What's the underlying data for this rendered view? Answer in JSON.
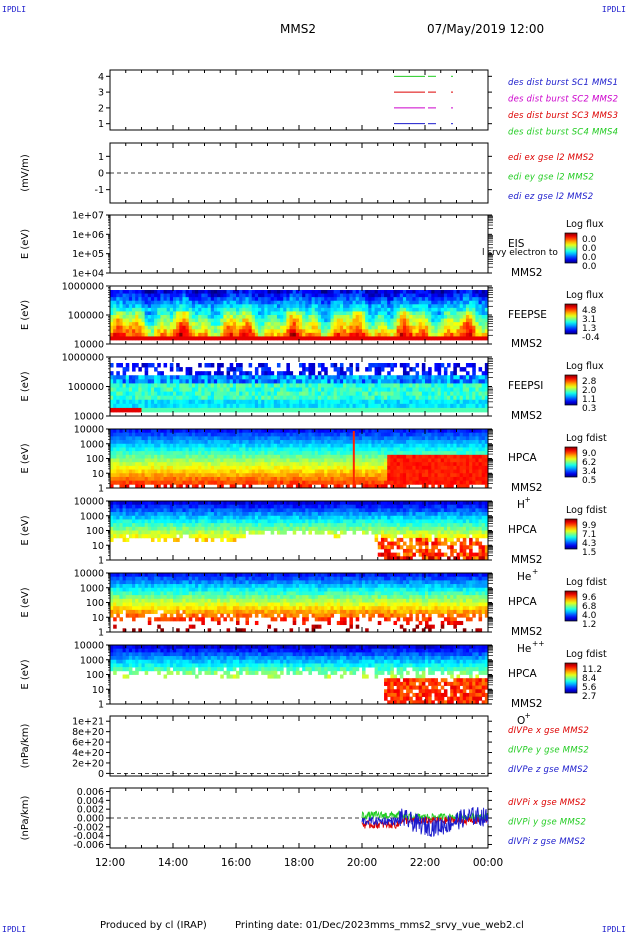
{
  "header": {
    "corner_tl": "IPDLI",
    "corner_tr": "IPDLI",
    "corner_bl": "IPDLI",
    "corner_br": "IPDLI",
    "spacecraft": "MMS2",
    "datetime": "07/May/2019 12:00"
  },
  "footer": {
    "produced": "Produced by cl (IRAP)",
    "printing": "Printing date: 01/Dec/2023",
    "script": "mms_mms2_srvy_vue_web2.cl"
  },
  "colors": {
    "blue": "#1a1acc",
    "magenta": "#cc00cc",
    "red": "#dd0000",
    "green": "#22cc22"
  },
  "chart_data": [
    {
      "type": "line",
      "panel": "burst",
      "yticks": [
        "1",
        "2",
        "3",
        "4"
      ],
      "ylim": [
        0.6,
        4.4
      ],
      "series": [
        {
          "name": "des dist burst SC1 MMS1",
          "color": "#1a1acc",
          "level": 1
        },
        {
          "name": "des dist burst SC2 MMS2",
          "color": "#cc00cc",
          "level": 2
        },
        {
          "name": "des dist burst SC3 MMS3",
          "color": "#dd0000",
          "level": 3
        },
        {
          "name": "des dist burst SC4 MMS4",
          "color": "#22cc22",
          "level": 4
        }
      ]
    },
    {
      "type": "line",
      "panel": "edi",
      "ylabel": "(mV/m)",
      "yticks": [
        "-1",
        "0",
        "1"
      ],
      "ylim": [
        -1.8,
        1.8
      ],
      "series": [
        {
          "name": "edi ex gse l2 MMS2",
          "color": "#dd0000"
        },
        {
          "name": "edi ey gse l2 MMS2",
          "color": "#22cc22"
        },
        {
          "name": "edi ez gse l2 MMS2",
          "color": "#1a1acc"
        }
      ]
    },
    {
      "type": "heatmap",
      "panel": "eis",
      "ylabel": "E (eV)",
      "yticks": [
        "1e+04",
        "1e+05",
        "1e+06",
        "1e+07"
      ],
      "instrument": "EIS",
      "overlay": "l srvy electron to",
      "sc": "MMS2",
      "cbar_title": "Log flux",
      "cbar_values": [
        "0.0",
        "0.0",
        "0.0",
        "0.0"
      ]
    },
    {
      "type": "heatmap",
      "panel": "feepse",
      "ylabel": "E (eV)",
      "yticks": [
        "10000",
        "100000",
        "1000000"
      ],
      "instrument": "FEEPSE",
      "sc": "MMS2",
      "cbar_title": "Log flux",
      "cbar_values": [
        "4.8",
        "3.1",
        "1.3",
        "-0.4"
      ]
    },
    {
      "type": "heatmap",
      "panel": "feepsi",
      "ylabel": "E (eV)",
      "yticks": [
        "10000",
        "100000",
        "1000000"
      ],
      "instrument": "FEEPSI",
      "sc": "MMS2",
      "cbar_title": "Log flux",
      "cbar_values": [
        "2.8",
        "2.0",
        "1.1",
        "0.3"
      ]
    },
    {
      "type": "heatmap",
      "panel": "hpca_h",
      "ylabel": "E (eV)",
      "yticks": [
        "1",
        "10",
        "100",
        "1000",
        "10000"
      ],
      "instrument": "HPCA",
      "sc": "MMS2",
      "species": "H",
      "species_sup": "+",
      "cbar_title": "Log fdist",
      "cbar_values": [
        "9.0",
        "6.2",
        "3.4",
        "0.5"
      ]
    },
    {
      "type": "heatmap",
      "panel": "hpca_he",
      "ylabel": "E (eV)",
      "yticks": [
        "1",
        "10",
        "100",
        "1000",
        "10000"
      ],
      "instrument": "HPCA",
      "sc": "MMS2",
      "species": "He",
      "species_sup": "+",
      "cbar_title": "Log fdist",
      "cbar_values": [
        "9.9",
        "7.1",
        "4.3",
        "1.5"
      ]
    },
    {
      "type": "heatmap",
      "panel": "hpca_hepp",
      "ylabel": "E (eV)",
      "yticks": [
        "1",
        "10",
        "100",
        "1000",
        "10000"
      ],
      "instrument": "HPCA",
      "sc": "MMS2",
      "species": "He",
      "species_sup": "++",
      "cbar_title": "Log fdist",
      "cbar_values": [
        "9.6",
        "6.8",
        "4.0",
        "1.2"
      ]
    },
    {
      "type": "heatmap",
      "panel": "hpca_o",
      "ylabel": "E (eV)",
      "yticks": [
        "1",
        "10",
        "100",
        "1000",
        "10000"
      ],
      "instrument": "HPCA",
      "sc": "MMS2",
      "species": "O",
      "species_sup": "+",
      "cbar_title": "Log fdist",
      "cbar_values": [
        "11.2",
        "8.4",
        "5.6",
        "2.7"
      ]
    },
    {
      "type": "line",
      "panel": "divpe",
      "ylabel": "(nPa/km)",
      "yticks": [
        "0",
        "2e+20",
        "4e+20",
        "6e+20",
        "8e+20",
        "1e+21"
      ],
      "ylim": [
        -5e+19,
        1.1e+21
      ],
      "series": [
        {
          "name": "dIVPe x gse MMS2",
          "color": "#dd0000"
        },
        {
          "name": "dIVPe y gse MMS2",
          "color": "#22cc22"
        },
        {
          "name": "dIVPe z gse MMS2",
          "color": "#1a1acc"
        }
      ]
    },
    {
      "type": "line",
      "panel": "divpi",
      "ylabel": "(nPa/km)",
      "yticks": [
        "-0.006",
        "-0.004",
        "-0.002",
        "0.000",
        "0.002",
        "0.004",
        "0.006"
      ],
      "ylim": [
        -0.0068,
        0.0068
      ],
      "series": [
        {
          "name": "dIVPi x gse MMS2",
          "color": "#dd0000"
        },
        {
          "name": "dIVPi y gse MMS2",
          "color": "#22cc22"
        },
        {
          "name": "dIVPi z gse MMS2",
          "color": "#1a1acc"
        }
      ]
    }
  ],
  "xaxis": {
    "ticks": [
      "12:00",
      "14:00",
      "16:00",
      "18:00",
      "20:00",
      "22:00",
      "00:00"
    ],
    "xlim": [
      "12:00",
      "00:00"
    ]
  }
}
